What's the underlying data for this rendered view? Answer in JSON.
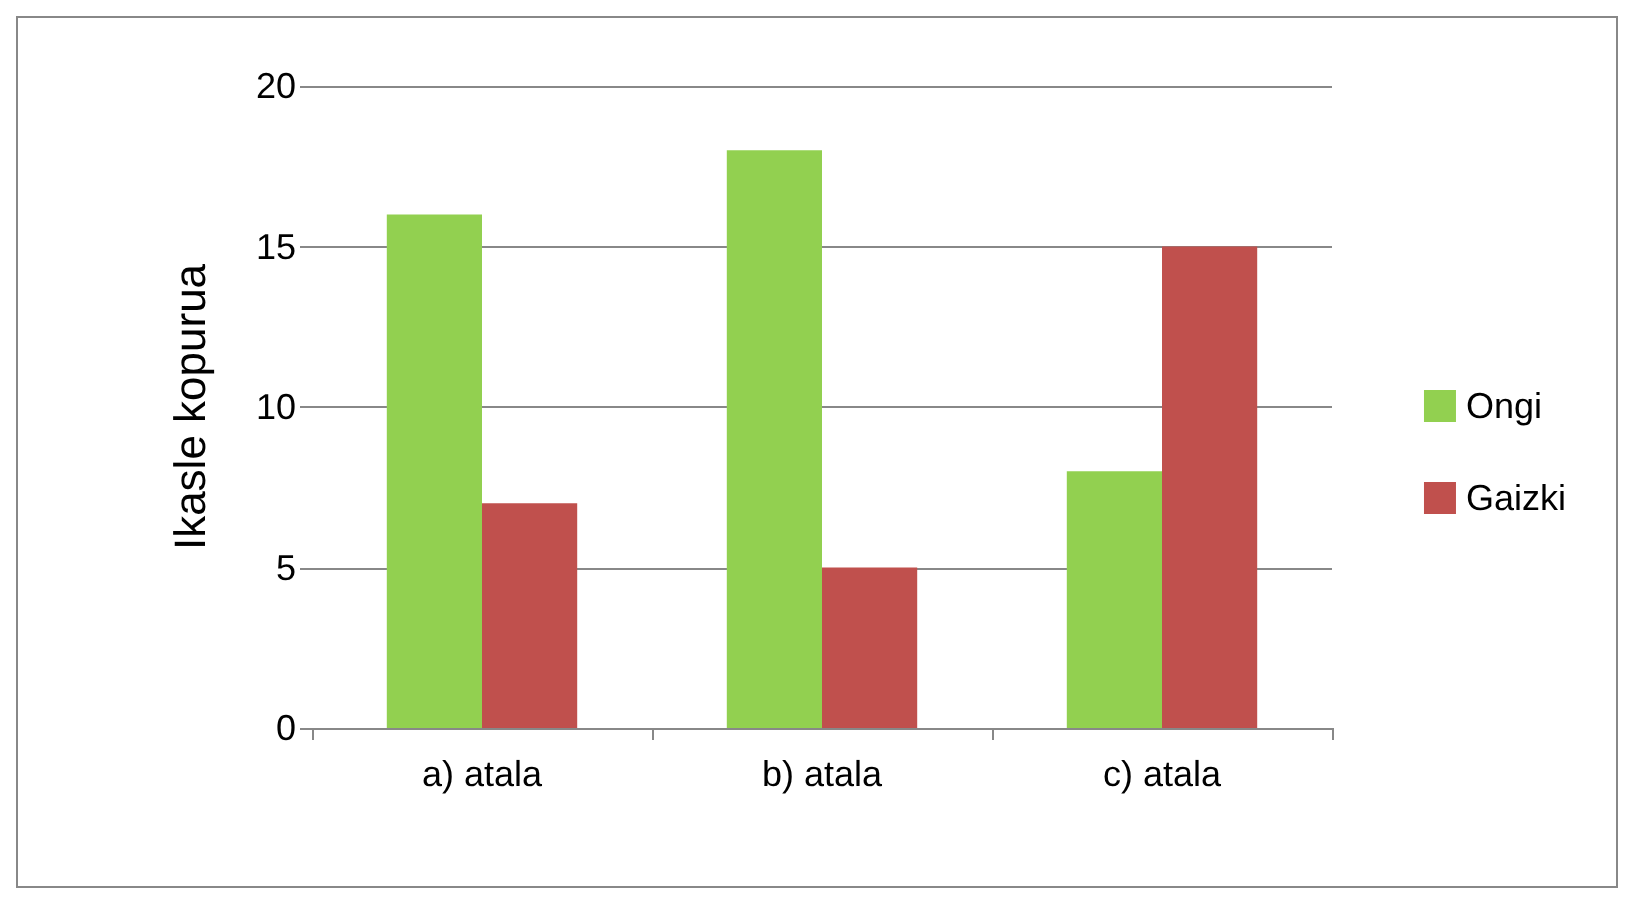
{
  "chart_data": {
    "type": "bar",
    "ylabel": "Ikasle kopurua",
    "categories": [
      "a) atala",
      "b) atala",
      "c) atala"
    ],
    "series": [
      {
        "name": "Ongi",
        "color": "#92d050",
        "values": [
          16,
          18,
          8
        ]
      },
      {
        "name": "Gaizki",
        "color": "#c0504d",
        "values": [
          7,
          5,
          15
        ]
      }
    ],
    "ylim": [
      0,
      20
    ],
    "yticks": [
      0,
      5,
      10,
      15,
      20
    ],
    "grid": "y",
    "legend": "right"
  }
}
